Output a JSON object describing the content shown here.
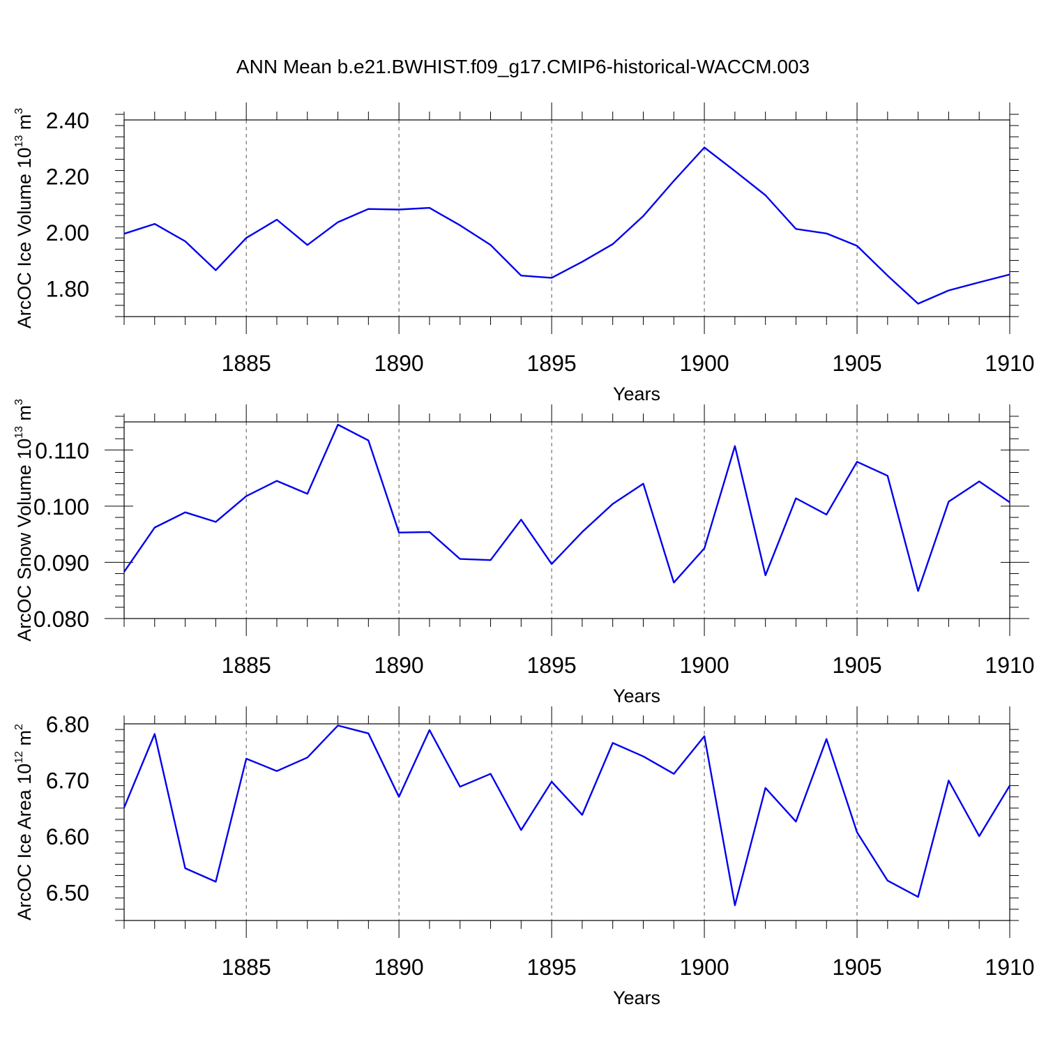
{
  "figure": {
    "title": "ANN Mean b.e21.BWHIST.f09_g17.CMIP6-historical-WACCM.003"
  },
  "chart_data": [
    {
      "type": "line",
      "id": "ice-volume",
      "ylabel": "ArcOC Ice Volume 10",
      "ylabel_exp": "13",
      "ylabel_unit": " m",
      "ylabel_unit_exp": "3",
      "xlabel": "Years",
      "xlim": [
        1881,
        1910
      ],
      "ylim": [
        1.7,
        2.4
      ],
      "yticks": [
        1.8,
        2.0,
        2.2,
        2.4
      ],
      "ytick_labels": [
        "1.80",
        "2.00",
        "2.20",
        "2.40"
      ],
      "yminor_step": 0.04,
      "xticks": [
        1885,
        1890,
        1895,
        1900,
        1905,
        1910
      ],
      "xtick_labels": [
        "1885",
        "1890",
        "1895",
        "1900",
        "1905",
        "1910"
      ],
      "grid": "x-dashed",
      "color": "#0000ee",
      "series": [
        {
          "name": "ice-volume",
          "x": [
            1881,
            1882,
            1883,
            1884,
            1885,
            1886,
            1887,
            1888,
            1889,
            1890,
            1891,
            1892,
            1893,
            1894,
            1895,
            1896,
            1897,
            1898,
            1899,
            1900,
            1901,
            1902,
            1903,
            1904,
            1905,
            1906,
            1907,
            1908,
            1909,
            1910
          ],
          "values": [
            1.995,
            2.03,
            1.968,
            1.865,
            1.98,
            2.045,
            1.955,
            2.036,
            2.083,
            2.081,
            2.087,
            2.025,
            1.955,
            1.846,
            1.838,
            1.895,
            1.958,
            2.058,
            2.183,
            2.302,
            2.218,
            2.132,
            2.012,
            1.996,
            1.952,
            1.846,
            1.746,
            1.793,
            1.822,
            1.85
          ]
        }
      ]
    },
    {
      "type": "line",
      "id": "snow-volume",
      "ylabel": "ArcOC Snow Volume 10",
      "ylabel_exp": "13",
      "ylabel_unit": " m",
      "ylabel_unit_exp": "3",
      "xlabel": "Years",
      "xlim": [
        1881,
        1910
      ],
      "ylim": [
        0.08,
        0.115
      ],
      "yticks": [
        0.08,
        0.09,
        0.1,
        0.11
      ],
      "ytick_labels": [
        "0.080",
        "0.090",
        "0.100",
        "0.110"
      ],
      "yminor_step": 0.002,
      "xticks": [
        1885,
        1890,
        1895,
        1900,
        1905,
        1910
      ],
      "xtick_labels": [
        "1885",
        "1890",
        "1895",
        "1900",
        "1905",
        "1910"
      ],
      "grid": "x-dashed",
      "color": "#0000ee",
      "series": [
        {
          "name": "snow-volume",
          "x": [
            1881,
            1882,
            1883,
            1884,
            1885,
            1886,
            1887,
            1888,
            1889,
            1890,
            1891,
            1892,
            1893,
            1894,
            1895,
            1896,
            1897,
            1898,
            1899,
            1900,
            1901,
            1902,
            1903,
            1904,
            1905,
            1906,
            1907,
            1908,
            1909,
            1910
          ],
          "values": [
            0.0883,
            0.0962,
            0.0989,
            0.0972,
            0.1018,
            0.1045,
            0.1022,
            0.1145,
            0.1117,
            0.0953,
            0.0954,
            0.0906,
            0.0904,
            0.0976,
            0.0897,
            0.0954,
            0.1004,
            0.104,
            0.0864,
            0.0925,
            0.1107,
            0.0877,
            0.1014,
            0.0985,
            0.1079,
            0.1054,
            0.0849,
            0.1008,
            0.1044,
            0.1007
          ]
        }
      ]
    },
    {
      "type": "line",
      "id": "ice-area",
      "ylabel": "ArcOC Ice Area 10",
      "ylabel_exp": "12",
      "ylabel_unit": " m",
      "ylabel_unit_exp": "2",
      "xlabel": "Years",
      "xlim": [
        1881,
        1910
      ],
      "ylim": [
        6.45,
        6.8
      ],
      "yticks": [
        6.5,
        6.6,
        6.7,
        6.8
      ],
      "ytick_labels": [
        "6.50",
        "6.60",
        "6.70",
        "6.80"
      ],
      "yminor_step": 0.02,
      "xticks": [
        1885,
        1890,
        1895,
        1900,
        1905,
        1910
      ],
      "xtick_labels": [
        "1885",
        "1890",
        "1895",
        "1900",
        "1905",
        "1910"
      ],
      "grid": "x-dashed",
      "color": "#0000ee",
      "series": [
        {
          "name": "ice-area",
          "x": [
            1881,
            1882,
            1883,
            1884,
            1885,
            1886,
            1887,
            1888,
            1889,
            1890,
            1891,
            1892,
            1893,
            1894,
            1895,
            1896,
            1897,
            1898,
            1899,
            1900,
            1901,
            1902,
            1903,
            1904,
            1905,
            1906,
            1907,
            1908,
            1909,
            1910
          ],
          "values": [
            6.651,
            6.782,
            6.543,
            6.519,
            6.738,
            6.716,
            6.74,
            6.797,
            6.783,
            6.67,
            6.789,
            6.688,
            6.711,
            6.611,
            6.697,
            6.638,
            6.766,
            6.742,
            6.711,
            6.778,
            6.477,
            6.686,
            6.626,
            6.773,
            6.607,
            6.521,
            6.492,
            6.699,
            6.6,
            6.69
          ]
        }
      ]
    }
  ]
}
